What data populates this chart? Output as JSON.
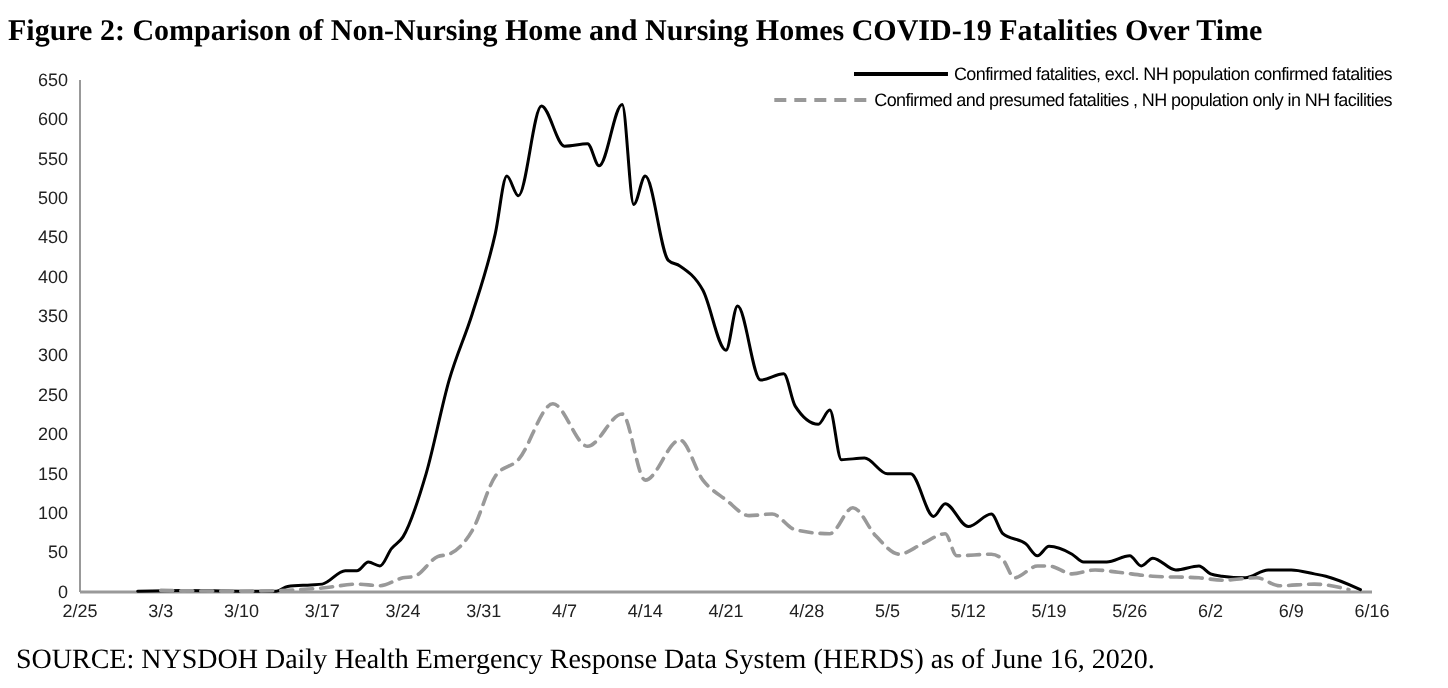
{
  "chart_data": {
    "type": "line",
    "title": "Figure 2: Comparison of Non-Nursing Home and Nursing Homes COVID-19 Fatalities Over Time",
    "annotations": [
      "SOURCE: NYSDOH Daily Health Emergency Response Data System (HERDS) as of June 16, 2020."
    ],
    "xlim": [
      "2020-02-25",
      "2020-06-16"
    ],
    "xticks": [
      {
        "value": "2020-02-25",
        "label": "2/25"
      },
      {
        "value": "2020-03-03",
        "label": "3/3"
      },
      {
        "value": "2020-03-10",
        "label": "3/10"
      },
      {
        "value": "2020-03-17",
        "label": "3/17"
      },
      {
        "value": "2020-03-24",
        "label": "3/24"
      },
      {
        "value": "2020-03-31",
        "label": "3/31"
      },
      {
        "value": "2020-04-07",
        "label": "4/7"
      },
      {
        "value": "2020-04-14",
        "label": "4/14"
      },
      {
        "value": "2020-04-21",
        "label": "4/21"
      },
      {
        "value": "2020-04-28",
        "label": "4/28"
      },
      {
        "value": "2020-05-05",
        "label": "5/5"
      },
      {
        "value": "2020-05-12",
        "label": "5/12"
      },
      {
        "value": "2020-05-19",
        "label": "5/19"
      },
      {
        "value": "2020-05-26",
        "label": "5/26"
      },
      {
        "value": "2020-06-02",
        "label": "6/2"
      },
      {
        "value": "2020-06-09",
        "label": "6/9"
      },
      {
        "value": "2020-06-16",
        "label": "6/16"
      }
    ],
    "ylim": [
      0,
      650
    ],
    "yticks": [
      0,
      50,
      100,
      150,
      200,
      250,
      300,
      350,
      400,
      450,
      500,
      550,
      600,
      650
    ],
    "grid": false,
    "legend": "top right",
    "marker": "none",
    "series": [
      {
        "name": "Confirmed fatalities, excl. NH population confirmed fatalities",
        "color": "#000000",
        "line_style": "solid",
        "x": [
          "2020-03-01",
          "2020-03-05",
          "2020-03-10",
          "2020-03-13",
          "2020-03-14",
          "2020-03-16",
          "2020-03-17",
          "2020-03-19",
          "2020-03-20",
          "2020-03-21",
          "2020-03-22",
          "2020-03-23",
          "2020-03-24",
          "2020-03-26",
          "2020-03-28",
          "2020-03-30",
          "2020-04-01",
          "2020-04-02",
          "2020-04-03",
          "2020-04-05",
          "2020-04-07",
          "2020-04-09",
          "2020-04-10",
          "2020-04-12",
          "2020-04-13",
          "2020-04-14",
          "2020-04-16",
          "2020-04-17",
          "2020-04-19",
          "2020-04-21",
          "2020-04-22",
          "2020-04-24",
          "2020-04-26",
          "2020-04-27",
          "2020-04-29",
          "2020-04-30",
          "2020-05-01",
          "2020-05-03",
          "2020-05-05",
          "2020-05-07",
          "2020-05-09",
          "2020-05-10",
          "2020-05-12",
          "2020-05-14",
          "2020-05-15",
          "2020-05-17",
          "2020-05-18",
          "2020-05-19",
          "2020-05-21",
          "2020-05-22",
          "2020-05-24",
          "2020-05-26",
          "2020-05-27",
          "2020-05-28",
          "2020-05-30",
          "2020-06-01",
          "2020-06-02",
          "2020-06-03",
          "2020-06-05",
          "2020-06-07",
          "2020-06-09",
          "2020-06-11",
          "2020-06-12",
          "2020-06-15"
        ],
        "values": [
          1,
          2,
          1,
          1,
          7,
          9,
          10,
          27,
          27,
          38,
          33,
          55,
          70,
          150,
          269,
          353,
          455,
          528,
          503,
          617,
          566,
          569,
          541,
          619,
          492,
          528,
          421,
          414,
          383,
          307,
          363,
          269,
          277,
          236,
          213,
          231,
          168,
          170,
          150,
          150,
          96,
          112,
          83,
          99,
          74,
          61,
          46,
          58,
          48,
          38,
          38,
          46,
          33,
          43,
          28,
          33,
          23,
          20,
          18,
          28,
          28,
          23,
          20,
          3
        ]
      },
      {
        "name": "Confirmed and presumed fatalities , NH population only in NH facilities",
        "color": "#999999",
        "line_style": "dashed",
        "x": [
          "2020-03-03",
          "2020-03-10",
          "2020-03-17",
          "2020-03-20",
          "2020-03-22",
          "2020-03-24",
          "2020-03-25",
          "2020-03-27",
          "2020-03-28",
          "2020-03-30",
          "2020-04-01",
          "2020-04-03",
          "2020-04-06",
          "2020-04-09",
          "2020-04-12",
          "2020-04-14",
          "2020-04-17",
          "2020-04-19",
          "2020-04-21",
          "2020-04-23",
          "2020-04-25",
          "2020-04-27",
          "2020-04-30",
          "2020-05-02",
          "2020-05-04",
          "2020-05-06",
          "2020-05-08",
          "2020-05-10",
          "2020-05-11",
          "2020-05-14",
          "2020-05-15",
          "2020-05-16",
          "2020-05-18",
          "2020-05-19",
          "2020-05-21",
          "2020-05-23",
          "2020-05-25",
          "2020-05-28",
          "2020-06-01",
          "2020-06-03",
          "2020-06-06",
          "2020-06-08",
          "2020-06-11",
          "2020-06-14"
        ],
        "values": [
          2,
          1,
          5,
          10,
          8,
          18,
          20,
          45,
          48,
          78,
          147,
          168,
          239,
          185,
          226,
          142,
          193,
          142,
          117,
          97,
          99,
          79,
          74,
          107,
          71,
          48,
          61,
          74,
          46,
          48,
          41,
          18,
          33,
          33,
          23,
          28,
          25,
          20,
          18,
          15,
          18,
          8,
          10,
          3
        ]
      }
    ]
  }
}
